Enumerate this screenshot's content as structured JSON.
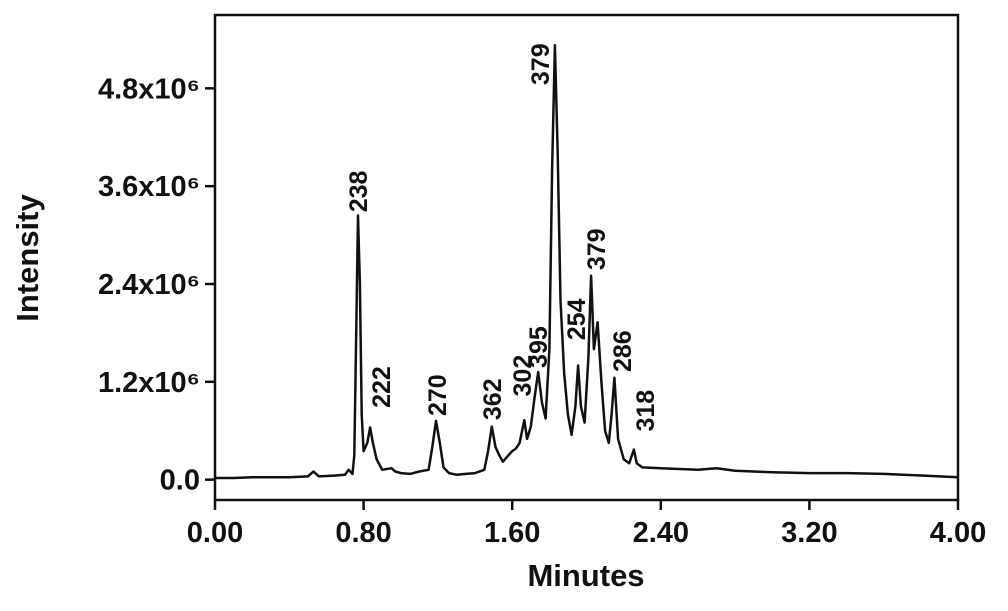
{
  "chart_data": {
    "type": "line",
    "x_label": "Minutes",
    "y_label": "Intensity",
    "xlim": [
      0,
      4
    ],
    "ylim": [
      -250000,
      5700000
    ],
    "xticks": [
      {
        "value": 0,
        "label": "0.00"
      },
      {
        "value": 0.8,
        "label": "0.80"
      },
      {
        "value": 1.6,
        "label": "1.60"
      },
      {
        "value": 2.4,
        "label": "2.40"
      },
      {
        "value": 3.2,
        "label": "3.20"
      },
      {
        "value": 4,
        "label": "4.00"
      }
    ],
    "yticks": [
      {
        "value": 0,
        "label": "0.0"
      },
      {
        "value": 1200000,
        "label": "1.2x10⁶"
      },
      {
        "value": 2400000,
        "label": "2.4x10⁶"
      },
      {
        "value": 3600000,
        "label": "3.6x10⁶"
      },
      {
        "value": 4800000,
        "label": "4.8x10⁶"
      }
    ],
    "grid": false,
    "color": "#111111",
    "x": [
      0,
      0.1,
      0.2,
      0.3,
      0.4,
      0.5,
      0.53,
      0.56,
      0.65,
      0.7,
      0.72,
      0.74,
      0.75,
      0.76,
      0.77,
      0.78,
      0.79,
      0.8,
      0.82,
      0.835,
      0.85,
      0.87,
      0.9,
      0.95,
      0.97,
      1,
      1.05,
      1.1,
      1.15,
      1.17,
      1.19,
      1.21,
      1.23,
      1.26,
      1.3,
      1.35,
      1.4,
      1.45,
      1.47,
      1.49,
      1.51,
      1.53,
      1.55,
      1.58,
      1.6,
      1.62,
      1.64,
      1.665,
      1.68,
      1.7,
      1.72,
      1.74,
      1.76,
      1.78,
      1.8,
      1.815,
      1.83,
      1.845,
      1.86,
      1.88,
      1.9,
      1.92,
      1.94,
      1.955,
      1.97,
      1.99,
      2.01,
      2.025,
      2.04,
      2.06,
      2.08,
      2.1,
      2.12,
      2.135,
      2.15,
      2.17,
      2.2,
      2.23,
      2.255,
      2.27,
      2.3,
      2.4,
      2.5,
      2.6,
      2.7,
      2.8,
      2.9,
      3,
      3.2,
      3.4,
      3.6,
      3.8,
      4
    ],
    "values": [
      20000,
      20000,
      30000,
      30000,
      30000,
      40000,
      100000,
      40000,
      50000,
      60000,
      120000,
      70000,
      300000,
      1800000,
      3240000,
      2400000,
      800000,
      350000,
      450000,
      640000,
      450000,
      250000,
      120000,
      140000,
      100000,
      80000,
      70000,
      100000,
      120000,
      400000,
      720000,
      450000,
      150000,
      80000,
      60000,
      70000,
      80000,
      120000,
      350000,
      650000,
      400000,
      300000,
      220000,
      300000,
      350000,
      380000,
      450000,
      730000,
      500000,
      650000,
      1000000,
      1320000,
      950000,
      750000,
      1600000,
      3800000,
      5330000,
      4000000,
      2200000,
      1300000,
      800000,
      550000,
      900000,
      1400000,
      900000,
      700000,
      1500000,
      2500000,
      1600000,
      1930000,
      1200000,
      600000,
      450000,
      800000,
      1250000,
      500000,
      250000,
      200000,
      370000,
      200000,
      150000,
      140000,
      130000,
      120000,
      140000,
      110000,
      100000,
      90000,
      80000,
      80000,
      70000,
      50000,
      30000
    ],
    "annotations": [
      {
        "text": "238",
        "x": 0.77,
        "y": 3280000
      },
      {
        "text": "222",
        "x": 0.894,
        "y": 880000
      },
      {
        "text": "270",
        "x": 1.195,
        "y": 780000
      },
      {
        "text": "362",
        "x": 1.49,
        "y": 730000
      },
      {
        "text": "302",
        "x": 1.653,
        "y": 1020000
      },
      {
        "text": "395",
        "x": 1.74,
        "y": 1370000
      },
      {
        "text": "379",
        "x": 1.75,
        "y": 4840000
      },
      {
        "text": "254",
        "x": 1.944,
        "y": 1710000
      },
      {
        "text": "379",
        "x": 2.05,
        "y": 2570000
      },
      {
        "text": "286",
        "x": 2.19,
        "y": 1320000
      },
      {
        "text": "318",
        "x": 2.315,
        "y": 590000
      }
    ]
  }
}
